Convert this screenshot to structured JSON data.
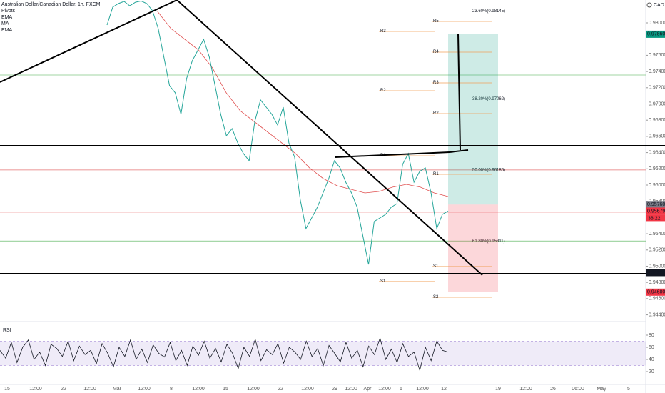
{
  "chart_data": {
    "type": "line",
    "title": "Australian Dollar/Canadian Dollar, 1h, FXCM",
    "indicators": [
      "Pivots",
      "EMA",
      "MA",
      "EMA"
    ],
    "currency": "CAD",
    "color": "#26a69a",
    "values": [
      0.97974,
      0.98194,
      0.98238,
      0.98264,
      0.98211,
      0.98255,
      0.9827,
      0.98238,
      0.9815,
      0.9793,
      0.97577,
      0.97225,
      0.97137,
      0.96872,
      0.97313,
      0.97533,
      0.97665,
      0.97797,
      0.97577,
      0.97225,
      0.96872,
      0.96608,
      0.96696,
      0.9652,
      0.96388,
      0.963,
      0.96784,
      0.97049,
      0.9696,
      0.96872,
      0.9674,
      0.9696,
      0.9652,
      0.96344,
      0.95815,
      0.95463,
      0.95595,
      0.95727,
      0.95903,
      0.96079,
      0.963,
      0.96212,
      0.96035,
      0.95903,
      0.95727,
      0.95375,
      0.95022,
      0.95551,
      0.95595,
      0.95639,
      0.95727,
      0.95771,
      0.96256,
      0.96388,
      0.96035,
      0.96168,
      0.96212,
      0.95903,
      0.95463,
      0.95639,
      0.95679
    ],
    "ma_color": "#e05050",
    "ma": [
      0.9815,
      0.9793,
      0.97797,
      0.97665,
      0.97445,
      0.97137,
      0.96916,
      0.96784,
      0.96652,
      0.9652,
      0.96388,
      0.96212,
      0.96079,
      0.95991,
      0.95947,
      0.95903,
      0.95921,
      0.95974,
      0.96009,
      0.95974,
      0.95903,
      0.95859
    ],
    "ylim": [
      0.94317,
      0.98282
    ],
    "yticks": [
      {
        "value": 0.944,
        "label": "0.94400"
      },
      {
        "value": 0.946,
        "label": "0.94600"
      },
      {
        "value": 0.948,
        "label": "0.94800"
      },
      {
        "value": 0.95,
        "label": "0.95000"
      },
      {
        "value": 0.952,
        "label": "0.95200"
      },
      {
        "value": 0.954,
        "label": "0.95400"
      },
      {
        "value": 0.956,
        "label": "0.95600"
      },
      {
        "value": 0.958,
        "label": "0.95800"
      },
      {
        "value": 0.96,
        "label": "0.96000"
      },
      {
        "value": 0.962,
        "label": "0.96200"
      },
      {
        "value": 0.964,
        "label": "0.96400"
      },
      {
        "value": 0.966,
        "label": "0.96600"
      },
      {
        "value": 0.968,
        "label": "0.96800"
      },
      {
        "value": 0.97,
        "label": "0.97000"
      },
      {
        "value": 0.972,
        "label": "0.97200"
      },
      {
        "value": 0.974,
        "label": "0.97400"
      },
      {
        "value": 0.976,
        "label": "0.97600"
      },
      {
        "value": 0.98,
        "label": "0.98000"
      }
    ],
    "fib_levels": [
      {
        "value": 0.98145,
        "label": "23.60%(0.98145)",
        "color": "#4caf50"
      },
      {
        "value": 0.97062,
        "label": "38.20%(0.97062)",
        "color": "#4caf50"
      },
      {
        "value": 0.96186,
        "label": "50.00%(0.96186)",
        "color": "#e57373"
      },
      {
        "value": 0.95311,
        "label": "61.80%(0.95311)",
        "color": "#4caf50"
      }
    ],
    "extra_levels": [
      {
        "value": 0.97357,
        "color": "#81c784"
      },
      {
        "value": 0.95665,
        "color": "#ef9a9a"
      }
    ],
    "pivot_color": "#f0a05a",
    "pivots": [
      {
        "label": "R5",
        "value": 0.98018
      },
      {
        "label": "R4",
        "value": 0.97639
      },
      {
        "label": "R3",
        "value": 0.9726
      },
      {
        "label": "R2",
        "value": 0.96881
      },
      {
        "label": "R1",
        "value": 0.96132
      },
      {
        "label": "S1",
        "value": 0.94996
      },
      {
        "label": "S2",
        "value": 0.94617
      }
    ],
    "pivots_prev": [
      {
        "label": "R3",
        "value": 0.97894
      },
      {
        "label": "R2",
        "value": 0.97163
      },
      {
        "label": "R1",
        "value": 0.96361
      },
      {
        "label": "S1",
        "value": 0.94811
      }
    ],
    "position": {
      "target": 0.9786,
      "entry": 0.9576,
      "stop": 0.9468
    },
    "price_labels": [
      {
        "value": 0.9786,
        "label": "0.97860",
        "color": "#089981"
      },
      {
        "value": 0.9576,
        "label": "0.95760",
        "color": "#787b86"
      },
      {
        "value": 0.95679,
        "label": "0.95679",
        "color": "#f23645"
      },
      {
        "value": 0.94921,
        "label": "0.94921",
        "color": "#131722"
      },
      {
        "value": 0.9468,
        "label": "0.94680",
        "color": "#f23645"
      }
    ],
    "countdown": "38:22",
    "x_labels": [
      "15",
      "12:00",
      "22",
      "12:00",
      "Mar",
      "12:00",
      "8",
      "12:00",
      "15",
      "12:00",
      "22",
      "12:00",
      "29",
      "12:00",
      "Apr",
      "12:00",
      "6",
      "12:00",
      "12",
      "19",
      "12:00",
      "26",
      "06:00",
      "May",
      "5"
    ],
    "rsi": {
      "title": "RSI",
      "color": "#131722",
      "band": [
        30,
        70
      ],
      "ylim": [
        0,
        100
      ],
      "yticks": [
        20,
        40,
        60,
        80
      ],
      "values": [
        55,
        42,
        68,
        35,
        60,
        72,
        40,
        52,
        30,
        65,
        58,
        45,
        70,
        38,
        62,
        48,
        55,
        33,
        66,
        50,
        28,
        60,
        45,
        72,
        40,
        57,
        35,
        64,
        50,
        44,
        68,
        38,
        55,
        30,
        62,
        47,
        70,
        42,
        58,
        36,
        65,
        50,
        25,
        60,
        45,
        73,
        38,
        56,
        48,
        66,
        34,
        60,
        52,
        40,
        70,
        45,
        58,
        30,
        63,
        50,
        36,
        68,
        42,
        55,
        28,
        62,
        48,
        75,
        40,
        57,
        35,
        66,
        45,
        52,
        22,
        60,
        38,
        70,
        55,
        52
      ]
    }
  }
}
